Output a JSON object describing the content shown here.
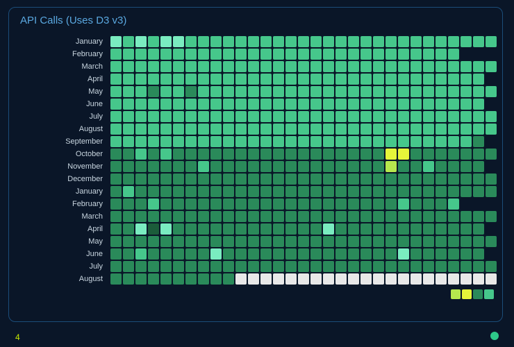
{
  "title": "API Calls (Uses D3 v3)",
  "page_number": "4",
  "chart": {
    "type": "heatmap",
    "rows": 20,
    "cols": 31,
    "cell_size": 16,
    "cell_gap": 2,
    "cell_radius": 2,
    "background_color": "#0a1628",
    "panel_border_color": "#1b4d7a",
    "label_color": "#c9d6e0",
    "title_color": "#5aa8e0",
    "title_fontsize": 15,
    "label_fontsize": 11,
    "row_labels": [
      "January",
      "February",
      "March",
      "April",
      "May",
      "June",
      "July",
      "August",
      "September",
      "October",
      "November",
      "December",
      "January",
      "February",
      "March",
      "April",
      "May",
      "June",
      "July",
      "August"
    ],
    "colors": {
      "c0": "#e8e8e8",
      "c1": "#1b5c3a",
      "c2": "#2a8a5a",
      "c3": "#46c78b",
      "c4": "#7aecc0",
      "c5": "#b6e84e",
      "c6": "#e6f53a",
      "cx": "transparent"
    },
    "data": [
      [
        "c4",
        "c3",
        "c4",
        "c3",
        "c4",
        "c4",
        "c3",
        "c3",
        "c3",
        "c3",
        "c3",
        "c3",
        "c3",
        "c3",
        "c3",
        "c3",
        "c3",
        "c3",
        "c3",
        "c3",
        "c3",
        "c3",
        "c3",
        "c3",
        "c3",
        "c3",
        "c3",
        "c3",
        "c3",
        "c3",
        "c3"
      ],
      [
        "c3",
        "c3",
        "c3",
        "c3",
        "c3",
        "c3",
        "c3",
        "c3",
        "c3",
        "c3",
        "c3",
        "c3",
        "c3",
        "c3",
        "c3",
        "c3",
        "c3",
        "c3",
        "c3",
        "c3",
        "c3",
        "c3",
        "c3",
        "c3",
        "c3",
        "c3",
        "c3",
        "c3",
        "cx",
        "cx",
        "cx"
      ],
      [
        "c3",
        "c3",
        "c3",
        "c3",
        "c3",
        "c3",
        "c3",
        "c3",
        "c3",
        "c3",
        "c3",
        "c3",
        "c3",
        "c3",
        "c3",
        "c3",
        "c3",
        "c3",
        "c3",
        "c3",
        "c3",
        "c3",
        "c3",
        "c3",
        "c3",
        "c3",
        "c3",
        "c3",
        "c3",
        "c3",
        "c3"
      ],
      [
        "c3",
        "c3",
        "c3",
        "c3",
        "c3",
        "c3",
        "c3",
        "c3",
        "c3",
        "c3",
        "c3",
        "c3",
        "c3",
        "c3",
        "c3",
        "c3",
        "c3",
        "c3",
        "c3",
        "c3",
        "c3",
        "c3",
        "c3",
        "c3",
        "c3",
        "c3",
        "c3",
        "c3",
        "c3",
        "c3",
        "cx"
      ],
      [
        "c3",
        "c3",
        "c3",
        "c2",
        "c3",
        "c3",
        "c2",
        "c3",
        "c3",
        "c3",
        "c3",
        "c3",
        "c3",
        "c3",
        "c3",
        "c3",
        "c3",
        "c3",
        "c3",
        "c3",
        "c3",
        "c3",
        "c3",
        "c3",
        "c3",
        "c3",
        "c3",
        "c3",
        "c3",
        "c3",
        "c3"
      ],
      [
        "c3",
        "c3",
        "c3",
        "c3",
        "c3",
        "c3",
        "c3",
        "c3",
        "c3",
        "c3",
        "c3",
        "c3",
        "c3",
        "c3",
        "c3",
        "c3",
        "c3",
        "c3",
        "c3",
        "c3",
        "c3",
        "c3",
        "c3",
        "c3",
        "c3",
        "c3",
        "c3",
        "c3",
        "c3",
        "c3",
        "cx"
      ],
      [
        "c3",
        "c3",
        "c3",
        "c3",
        "c3",
        "c3",
        "c3",
        "c3",
        "c3",
        "c3",
        "c3",
        "c3",
        "c3",
        "c3",
        "c3",
        "c3",
        "c3",
        "c3",
        "c3",
        "c3",
        "c3",
        "c3",
        "c3",
        "c3",
        "c3",
        "c3",
        "c3",
        "c3",
        "c3",
        "c3",
        "c3"
      ],
      [
        "c3",
        "c3",
        "c3",
        "c3",
        "c3",
        "c3",
        "c3",
        "c3",
        "c3",
        "c3",
        "c3",
        "c3",
        "c3",
        "c3",
        "c3",
        "c3",
        "c3",
        "c3",
        "c3",
        "c3",
        "c3",
        "c3",
        "c3",
        "c3",
        "c3",
        "c3",
        "c3",
        "c3",
        "c3",
        "c3",
        "c3"
      ],
      [
        "c3",
        "c3",
        "c3",
        "c3",
        "c3",
        "c3",
        "c3",
        "c3",
        "c3",
        "c3",
        "c3",
        "c3",
        "c3",
        "c3",
        "c3",
        "c3",
        "c3",
        "c3",
        "c3",
        "c3",
        "c3",
        "c3",
        "c3",
        "c3",
        "c3",
        "c3",
        "c3",
        "c3",
        "c3",
        "c2",
        "cx"
      ],
      [
        "c2",
        "c2",
        "c3",
        "c2",
        "c3",
        "c2",
        "c2",
        "c2",
        "c2",
        "c2",
        "c2",
        "c2",
        "c2",
        "c2",
        "c2",
        "c2",
        "c2",
        "c2",
        "c2",
        "c2",
        "c2",
        "c2",
        "c6",
        "c6",
        "c2",
        "c2",
        "c2",
        "c2",
        "c2",
        "c2",
        "c2"
      ],
      [
        "c2",
        "c2",
        "c2",
        "c2",
        "c2",
        "c2",
        "c2",
        "c3",
        "c2",
        "c2",
        "c2",
        "c2",
        "c2",
        "c2",
        "c2",
        "c2",
        "c2",
        "c2",
        "c2",
        "c2",
        "c2",
        "c2",
        "c5",
        "c2",
        "c2",
        "c3",
        "c2",
        "c2",
        "c2",
        "c2",
        "cx"
      ],
      [
        "c2",
        "c2",
        "c2",
        "c2",
        "c2",
        "c2",
        "c2",
        "c2",
        "c2",
        "c2",
        "c2",
        "c2",
        "c2",
        "c2",
        "c2",
        "c2",
        "c2",
        "c2",
        "c2",
        "c2",
        "c2",
        "c2",
        "c2",
        "c2",
        "c2",
        "c2",
        "c2",
        "c2",
        "c2",
        "c2",
        "c2"
      ],
      [
        "c2",
        "c3",
        "c2",
        "c2",
        "c2",
        "c2",
        "c2",
        "c2",
        "c2",
        "c2",
        "c2",
        "c2",
        "c2",
        "c2",
        "c2",
        "c2",
        "c2",
        "c2",
        "c2",
        "c2",
        "c2",
        "c2",
        "c2",
        "c2",
        "c2",
        "c2",
        "c2",
        "c2",
        "c2",
        "c2",
        "c2"
      ],
      [
        "c2",
        "c2",
        "c2",
        "c3",
        "c2",
        "c2",
        "c2",
        "c2",
        "c2",
        "c2",
        "c2",
        "c2",
        "c2",
        "c2",
        "c2",
        "c2",
        "c2",
        "c2",
        "c2",
        "c2",
        "c2",
        "c2",
        "c2",
        "c3",
        "c2",
        "c2",
        "c2",
        "c3",
        "cx",
        "cx",
        "cx"
      ],
      [
        "c2",
        "c2",
        "c2",
        "c2",
        "c2",
        "c2",
        "c2",
        "c2",
        "c2",
        "c2",
        "c2",
        "c2",
        "c2",
        "c2",
        "c2",
        "c2",
        "c2",
        "c2",
        "c2",
        "c2",
        "c2",
        "c2",
        "c2",
        "c2",
        "c2",
        "c2",
        "c2",
        "c2",
        "c2",
        "c2",
        "c2"
      ],
      [
        "c2",
        "c2",
        "c4",
        "c1",
        "c4",
        "c2",
        "c2",
        "c2",
        "c2",
        "c2",
        "c2",
        "c2",
        "c2",
        "c2",
        "c2",
        "c2",
        "c2",
        "c4",
        "c2",
        "c2",
        "c2",
        "c2",
        "c2",
        "c2",
        "c2",
        "c2",
        "c2",
        "c2",
        "c2",
        "c2",
        "cx"
      ],
      [
        "c2",
        "c2",
        "c2",
        "c2",
        "c2",
        "c2",
        "c2",
        "c2",
        "c2",
        "c2",
        "c2",
        "c2",
        "c2",
        "c2",
        "c2",
        "c2",
        "c2",
        "c2",
        "c2",
        "c2",
        "c2",
        "c2",
        "c2",
        "c2",
        "c2",
        "c2",
        "c2",
        "c2",
        "c2",
        "c2",
        "c2"
      ],
      [
        "c2",
        "c2",
        "c3",
        "c2",
        "c2",
        "c2",
        "c2",
        "c2",
        "c4",
        "c2",
        "c2",
        "c2",
        "c2",
        "c2",
        "c2",
        "c2",
        "c2",
        "c2",
        "c2",
        "c2",
        "c2",
        "c2",
        "c2",
        "c4",
        "c2",
        "c2",
        "c2",
        "c2",
        "c2",
        "c2",
        "cx"
      ],
      [
        "c2",
        "c2",
        "c2",
        "c2",
        "c2",
        "c2",
        "c2",
        "c2",
        "c2",
        "c2",
        "c2",
        "c2",
        "c2",
        "c2",
        "c2",
        "c2",
        "c2",
        "c2",
        "c2",
        "c2",
        "c2",
        "c2",
        "c2",
        "c2",
        "c2",
        "c2",
        "c2",
        "c2",
        "c2",
        "c2",
        "c2"
      ],
      [
        "c2",
        "c2",
        "c2",
        "c2",
        "c2",
        "c2",
        "c2",
        "c2",
        "c2",
        "c2",
        "c0",
        "c0",
        "c0",
        "c0",
        "c0",
        "c0",
        "c0",
        "c0",
        "c0",
        "c0",
        "c0",
        "c0",
        "c0",
        "c0",
        "c0",
        "c0",
        "c0",
        "c0",
        "c0",
        "c0",
        "c0"
      ]
    ],
    "legend_keys": [
      "c5",
      "c6",
      "c2",
      "c3"
    ]
  },
  "status_dot_color": "#2ec889",
  "page_number_color": "#c6e800"
}
